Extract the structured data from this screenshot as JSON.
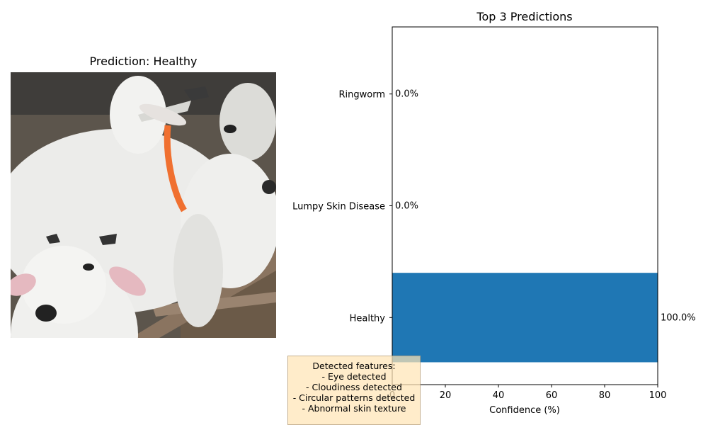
{
  "left_panel": {
    "title": "Prediction: Healthy"
  },
  "features_box": {
    "lines": [
      "Detected features:",
      "- Eye detected",
      "- Cloudiness detected",
      "- Circular patterns detected",
      "- Abnormal skin texture"
    ],
    "background_color": "#ffe4b5"
  },
  "chart_data": {
    "type": "bar",
    "orientation": "horizontal",
    "title": "Top 3 Predictions",
    "xlabel": "Confidence (%)",
    "ylabel": "",
    "categories": [
      "Healthy",
      "Lumpy Skin Disease",
      "Ringworm"
    ],
    "values": [
      100.0,
      0.0,
      0.0
    ],
    "value_labels": [
      "100.0%",
      "0.0%",
      "0.0%"
    ],
    "xlim": [
      0,
      100
    ],
    "xticks": [
      "0",
      "20",
      "40",
      "60",
      "80",
      "100"
    ],
    "bar_color": "#1f77b4",
    "grid": false
  }
}
